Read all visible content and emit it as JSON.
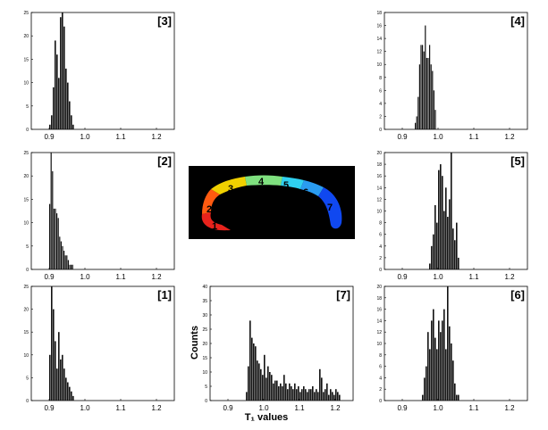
{
  "figure": {
    "x_axis_label": "T₁ values",
    "y_axis_label": "Counts"
  },
  "inset": {
    "segment_labels": [
      "1",
      "2",
      "3",
      "4",
      "5",
      "6",
      "7"
    ],
    "colors": [
      "#e8231c",
      "#ff7a00",
      "#f5e000",
      "#7fe07f",
      "#2fd0f0",
      "#2a9cf0",
      "#1048f0"
    ]
  },
  "chart_data": [
    {
      "type": "bar",
      "panel": "[3]",
      "title": "[3]",
      "xlim": [
        0.85,
        1.25
      ],
      "ylim": [
        0,
        25
      ],
      "xticks": [
        "0.9",
        "1.0",
        "1.1",
        "1.2"
      ],
      "yticks": [
        "0",
        "5",
        "10",
        "15",
        "20",
        "25"
      ],
      "bin_start": 0.9,
      "bin_width": 0.005,
      "values": [
        1,
        3,
        9,
        19,
        16,
        11,
        24,
        25,
        22,
        13,
        10,
        6,
        3,
        1
      ]
    },
    {
      "type": "bar",
      "panel": "[4]",
      "title": "[4]",
      "xlim": [
        0.85,
        1.25
      ],
      "ylim": [
        0,
        18
      ],
      "xticks": [
        "0.9",
        "1.0",
        "1.1",
        "1.2"
      ],
      "yticks": [
        "0",
        "2",
        "4",
        "6",
        "8",
        "10",
        "12",
        "14",
        "16",
        "18"
      ],
      "bin_start": 0.935,
      "bin_width": 0.004,
      "values": [
        1,
        2,
        5,
        10,
        13,
        13,
        12,
        16,
        11,
        11,
        13,
        10,
        9,
        6,
        3
      ]
    },
    {
      "type": "bar",
      "panel": "[2]",
      "title": "[2]",
      "xlim": [
        0.85,
        1.25
      ],
      "ylim": [
        0,
        25
      ],
      "xticks": [
        "0.9",
        "1.0",
        "1.1",
        "1.2"
      ],
      "yticks": [
        "0",
        "5",
        "10",
        "15",
        "20",
        "25"
      ],
      "bin_start": 0.9,
      "bin_width": 0.004,
      "values": [
        14,
        25,
        21,
        13,
        13,
        12,
        11,
        7,
        6,
        5,
        4,
        3,
        3,
        2,
        1,
        1,
        1
      ]
    },
    {
      "type": "bar",
      "panel": "[5]",
      "title": "[5]",
      "xlim": [
        0.85,
        1.25
      ],
      "ylim": [
        0,
        20
      ],
      "xticks": [
        "0.9",
        "1.0",
        "1.1",
        "1.2"
      ],
      "yticks": [
        "0",
        "2",
        "4",
        "6",
        "8",
        "10",
        "12",
        "14",
        "16",
        "18",
        "20"
      ],
      "bin_start": 0.975,
      "bin_width": 0.005,
      "values": [
        1,
        4,
        6,
        11,
        8,
        17,
        18,
        16,
        10,
        14,
        9,
        12,
        20,
        7,
        5,
        8,
        2
      ]
    },
    {
      "type": "bar",
      "panel": "[1]",
      "title": "[1]",
      "xlim": [
        0.85,
        1.25
      ],
      "ylim": [
        0,
        25
      ],
      "xticks": [
        "0.9",
        "1.0",
        "1.1",
        "1.2"
      ],
      "yticks": [
        "0",
        "5",
        "10",
        "15",
        "20",
        "25"
      ],
      "bin_start": 0.9,
      "bin_width": 0.005,
      "values": [
        10,
        25,
        20,
        13,
        7,
        15,
        9,
        10,
        7,
        5,
        4,
        3,
        2,
        1
      ]
    },
    {
      "type": "bar",
      "panel": "[7]",
      "title": "[7]",
      "xlabel": "T₁ values",
      "ylabel": "Counts",
      "xlim": [
        0.85,
        1.25
      ],
      "ylim": [
        0,
        40
      ],
      "xticks": [
        "0.9",
        "1.0",
        "1.1",
        "1.2"
      ],
      "yticks": [
        "0",
        "5",
        "10",
        "15",
        "20",
        "25",
        "30",
        "35",
        "40"
      ],
      "bin_start": 0.95,
      "bin_width": 0.005,
      "values": [
        3,
        12,
        28,
        22,
        20,
        19,
        14,
        13,
        11,
        9,
        16,
        8,
        12,
        10,
        9,
        6,
        7,
        7,
        5,
        6,
        5,
        9,
        6,
        4,
        6,
        5,
        4,
        6,
        4,
        5,
        3,
        4,
        5,
        4,
        3,
        4,
        4,
        5,
        3,
        4,
        3,
        11,
        8,
        3,
        4,
        6,
        2,
        4,
        3,
        2,
        4,
        3,
        2
      ]
    },
    {
      "type": "bar",
      "panel": "[6]",
      "title": "[6]",
      "xlim": [
        0.85,
        1.25
      ],
      "ylim": [
        0,
        20
      ],
      "xticks": [
        "0.9",
        "1.0",
        "1.1",
        "1.2"
      ],
      "yticks": [
        "0",
        "2",
        "4",
        "6",
        "8",
        "10",
        "12",
        "14",
        "16",
        "18",
        "20"
      ],
      "bin_start": 0.955,
      "bin_width": 0.005,
      "values": [
        1,
        4,
        6,
        12,
        9,
        14,
        16,
        11,
        9,
        14,
        12,
        14,
        16,
        9,
        20,
        13,
        10,
        7,
        3,
        1,
        1
      ]
    }
  ]
}
